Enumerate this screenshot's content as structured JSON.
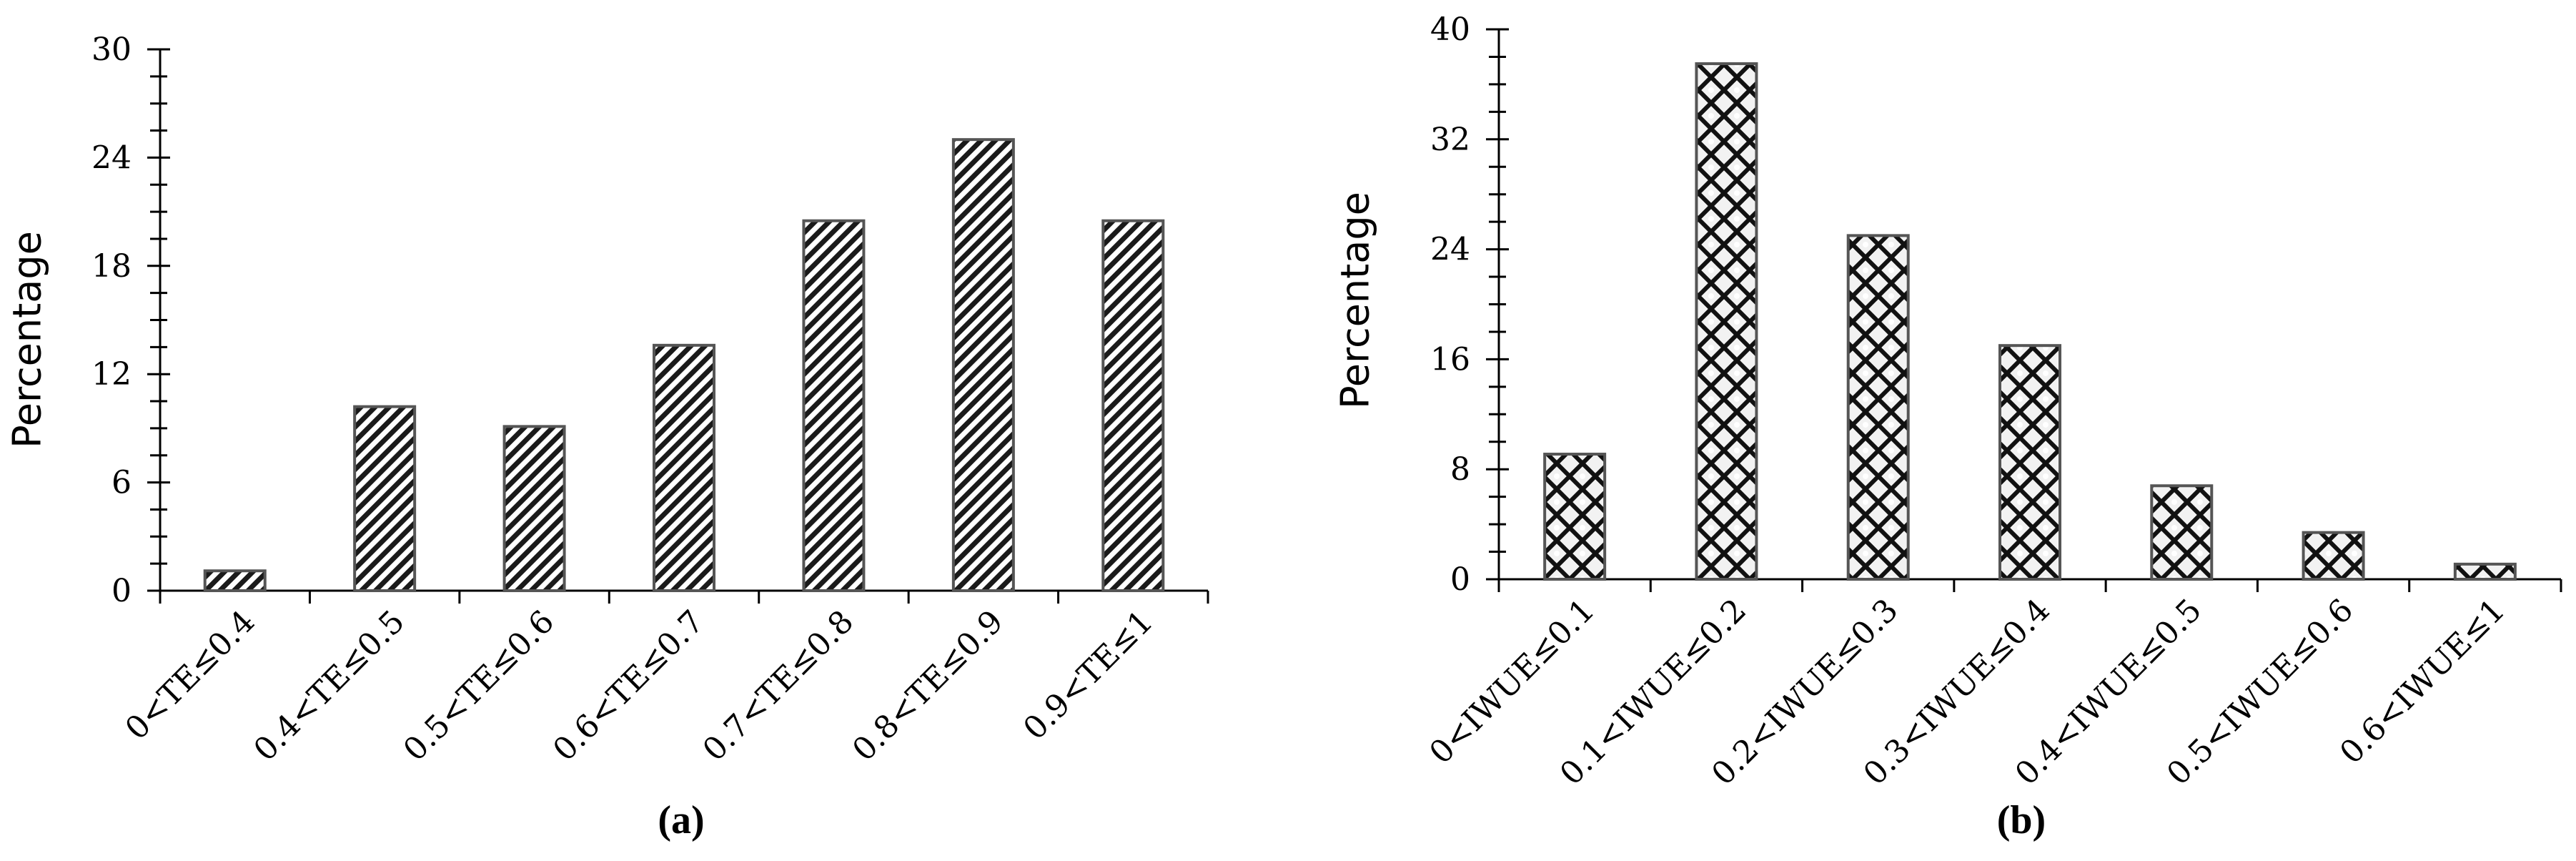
{
  "chart_data": [
    {
      "type": "bar",
      "panel_label": "(a)",
      "ylabel": "Percentage",
      "ylim": [
        0,
        30
      ],
      "yticks": [
        0,
        6,
        12,
        18,
        24,
        30
      ],
      "categories": [
        "0<TE≤0.4",
        "0.4<TE≤0.5",
        "0.5<TE≤0.6",
        "0.6<TE≤0.7",
        "0.7<TE≤0.8",
        "0.8<TE≤0.9",
        "0.9<TE≤1"
      ],
      "values": [
        1.1,
        10.2,
        9.1,
        13.6,
        20.5,
        25.0,
        20.5
      ],
      "pattern": "diagonal-stripes",
      "grid": false
    },
    {
      "type": "bar",
      "panel_label": "(b)",
      "ylabel": "Percentage",
      "ylim": [
        0,
        40
      ],
      "yticks": [
        0,
        8,
        16,
        24,
        32,
        40
      ],
      "categories": [
        "0<IWUE≤0.1",
        "0.1<IWUE≤0.2",
        "0.2<IWUE≤0.3",
        "0.3<IWUE≤0.4",
        "0.4<IWUE≤0.5",
        "0.5<IWUE≤0.6",
        "0.6<IWUE≤1"
      ],
      "values": [
        9.1,
        37.5,
        25.0,
        17.0,
        6.8,
        3.4,
        1.1
      ],
      "pattern": "diamond-lattice",
      "grid": false
    }
  ]
}
